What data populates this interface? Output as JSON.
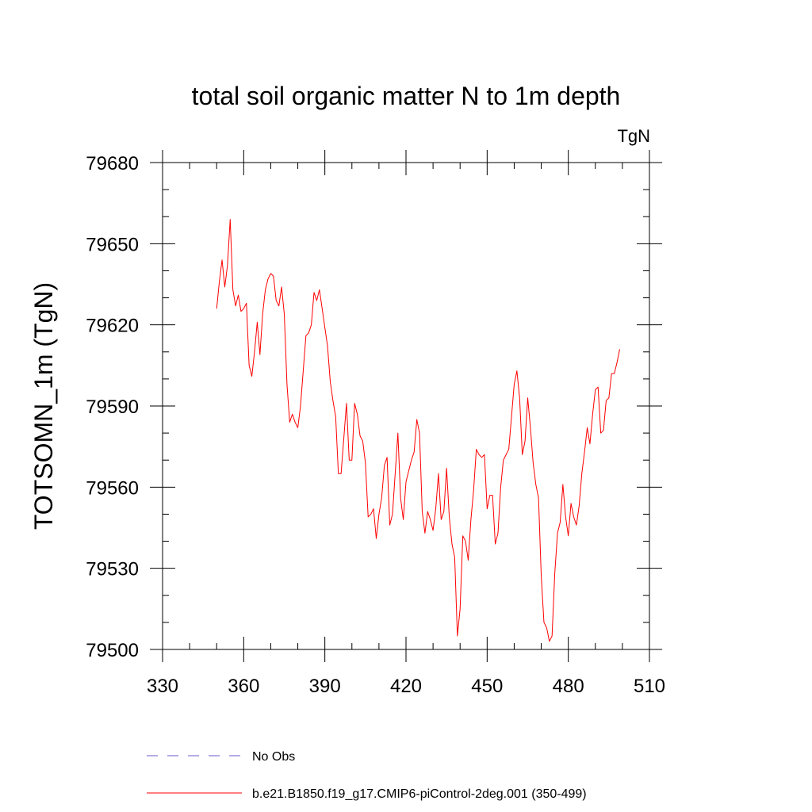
{
  "chart_data": {
    "type": "line",
    "title": "total soil organic matter N to 1m depth",
    "units_label": "TgN",
    "xlabel": "",
    "ylabel": "TOTSOMN_1m  (TgN)",
    "xlim": [
      330,
      510
    ],
    "ylim": [
      79500,
      79680
    ],
    "x_ticks": [
      330,
      360,
      390,
      420,
      450,
      480,
      510
    ],
    "y_ticks": [
      79500,
      79530,
      79560,
      79590,
      79620,
      79650,
      79680
    ],
    "x_minor_step": 10,
    "y_minor_step": 10,
    "series": [
      {
        "name": "b.e21.B1850.f19_g17.CMIP6-piControl-2deg.001 (350-499)",
        "color": "#ff0000",
        "style": "solid",
        "x": [
          350,
          351,
          352,
          353,
          354,
          355,
          356,
          357,
          358,
          359,
          360,
          361,
          362,
          363,
          364,
          365,
          366,
          367,
          368,
          369,
          370,
          371,
          372,
          373,
          374,
          375,
          376,
          377,
          378,
          379,
          380,
          381,
          382,
          383,
          384,
          385,
          386,
          387,
          388,
          389,
          390,
          391,
          392,
          393,
          394,
          395,
          396,
          397,
          398,
          399,
          400,
          401,
          402,
          403,
          404,
          405,
          406,
          407,
          408,
          409,
          410,
          411,
          412,
          413,
          414,
          415,
          416,
          417,
          418,
          419,
          420,
          421,
          422,
          423,
          424,
          425,
          426,
          427,
          428,
          429,
          430,
          431,
          432,
          433,
          434,
          435,
          436,
          437,
          438,
          439,
          440,
          441,
          442,
          443,
          444,
          445,
          446,
          447,
          448,
          449,
          450,
          451,
          452,
          453,
          454,
          455,
          456,
          457,
          458,
          459,
          460,
          461,
          462,
          463,
          464,
          465,
          466,
          467,
          468,
          469,
          470,
          471,
          472,
          473,
          474,
          475,
          476,
          477,
          478,
          479,
          480,
          481,
          482,
          483,
          484,
          485,
          486,
          487,
          488,
          489,
          490,
          491,
          492,
          493,
          494,
          495,
          496,
          497,
          498,
          499
        ],
        "y": [
          79626,
          79636,
          79644,
          79634,
          79642,
          79659,
          79633,
          79627,
          79631,
          79625,
          79626,
          79628,
          79605,
          79601,
          79610,
          79621,
          79609,
          79624,
          79633,
          79637,
          79639,
          79638,
          79629,
          79627,
          79634,
          79624,
          79598,
          79584,
          79587,
          79584,
          79582,
          79590,
          79603,
          79616,
          79617,
          79620,
          79632,
          79629,
          79633,
          79626,
          79619,
          79612,
          79599,
          79592,
          79586,
          79565,
          79565,
          79578,
          79591,
          79570,
          79570,
          79591,
          79587,
          79579,
          79577,
          79569,
          79549,
          79550,
          79552,
          79541,
          79550,
          79556,
          79568,
          79571,
          79546,
          79550,
          79565,
          79580,
          79556,
          79548,
          79562,
          79566,
          79570,
          79573,
          79585,
          79580,
          79551,
          79543,
          79551,
          79548,
          79544,
          79552,
          79565,
          79548,
          79551,
          79567,
          79549,
          79539,
          79534,
          79505,
          79515,
          79542,
          79540,
          79533,
          79548,
          79559,
          79574,
          79572,
          79571,
          79572,
          79552,
          79557,
          79557,
          79539,
          79543,
          79560,
          79570,
          79572,
          79574,
          79586,
          79598,
          79603,
          79593,
          79572,
          79577,
          79593,
          79582,
          79569,
          79561,
          79556,
          79527,
          79510,
          79508,
          79503,
          79505,
          79528,
          79543,
          79547,
          79561,
          79549,
          79542,
          79554,
          79549,
          79546,
          79553,
          79565,
          79573,
          79582,
          79576,
          79587,
          79596,
          79597,
          79580,
          79581,
          79592,
          79593,
          79602,
          79602,
          79606,
          79611
        ]
      },
      {
        "name": "No Obs",
        "color": "#6a5acd",
        "style": "dashed",
        "x": [],
        "y": []
      }
    ],
    "legend": "bottom"
  }
}
